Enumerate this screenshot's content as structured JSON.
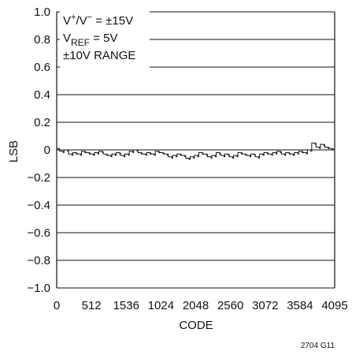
{
  "chart_data": {
    "type": "line",
    "title": "",
    "xlabel": "CODE",
    "ylabel": "LSB",
    "xlim": [
      0,
      4095
    ],
    "ylim": [
      -1.0,
      1.0
    ],
    "grid": true,
    "x_tick_labels": [
      "0",
      "512",
      "1536",
      "1024",
      "2048",
      "2560",
      "3072",
      "3584",
      "4095"
    ],
    "y_tick_labels": [
      "1.0",
      "0.8",
      "0.6",
      "0.4",
      "0.2",
      "0",
      "−0.2",
      "−0.4",
      "−0.6",
      "−0.8",
      "−1.0"
    ],
    "annotations": {
      "supply_pre": "V",
      "supply_plus": "+",
      "supply_mid": "/V",
      "supply_minus": "−",
      "supply_post": " = ±15V",
      "vref_pre": "V",
      "vref_sub": "REF",
      "vref_post": " = 5V",
      "range": "±10V RANGE"
    },
    "series": [
      {
        "x": [
          0,
          64,
          128,
          192,
          256,
          320,
          384,
          448,
          512,
          576,
          640,
          704,
          768,
          832,
          896,
          960,
          1024,
          1088,
          1152,
          1216,
          1280,
          1344,
          1408,
          1472,
          1536,
          1600,
          1664,
          1728,
          1792,
          1856,
          1920,
          1984,
          2048,
          2112,
          2176,
          2240,
          2304,
          2368,
          2432,
          2496,
          2560,
          2624,
          2688,
          2752,
          2816,
          2880,
          2944,
          3008,
          3072,
          3136,
          3200,
          3264,
          3328,
          3392,
          3456,
          3520,
          3584,
          3648,
          3712,
          3776,
          3840,
          3904,
          3968,
          4032,
          4095
        ],
        "y": [
          0.01,
          -0.01,
          0.0,
          -0.03,
          -0.02,
          -0.03,
          -0.01,
          -0.02,
          -0.03,
          -0.02,
          -0.01,
          -0.03,
          -0.04,
          -0.03,
          -0.02,
          -0.04,
          -0.03,
          -0.01,
          0.0,
          -0.02,
          -0.03,
          -0.02,
          -0.03,
          -0.01,
          -0.02,
          -0.03,
          -0.05,
          -0.04,
          -0.03,
          -0.04,
          -0.06,
          -0.05,
          -0.04,
          -0.02,
          -0.03,
          -0.05,
          -0.04,
          -0.02,
          -0.04,
          -0.03,
          -0.05,
          -0.04,
          -0.02,
          -0.03,
          -0.04,
          -0.03,
          -0.05,
          -0.03,
          -0.02,
          -0.03,
          -0.02,
          -0.01,
          -0.03,
          -0.02,
          -0.03,
          -0.02,
          -0.01,
          -0.02,
          0.0,
          0.05,
          0.02,
          0.04,
          0.02,
          0.01,
          0.0
        ]
      }
    ]
  },
  "figure_code": "2704 G11"
}
